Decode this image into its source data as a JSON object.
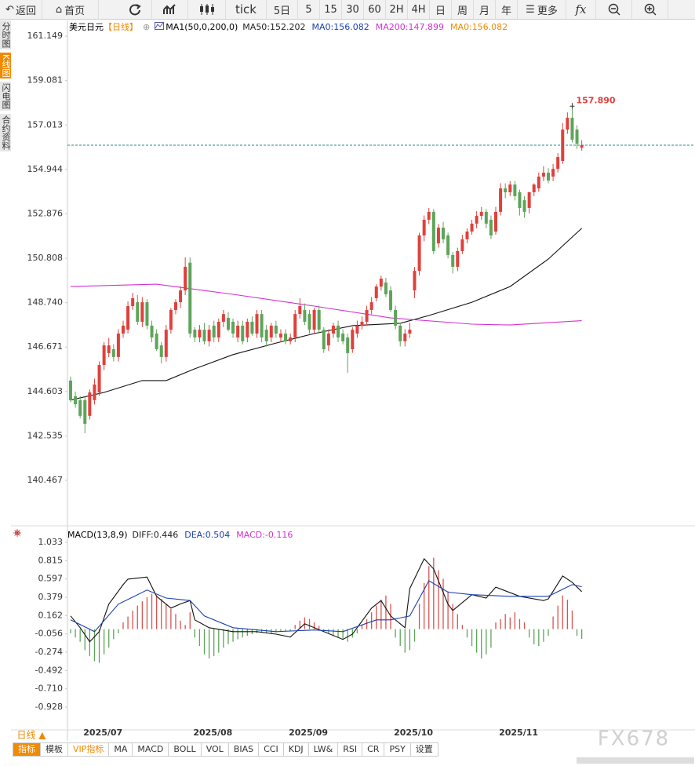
{
  "toolbar": [
    "返回",
    "首页",
    "tick",
    "5日",
    "5",
    "15",
    "30",
    "60",
    "2H",
    "4H",
    "日",
    "周",
    "月",
    "年",
    "更多",
    "fx"
  ],
  "sidebar": [
    "分时图",
    "K线图",
    "闪电图",
    "合约资料"
  ],
  "period_button": "日线 ▲",
  "tabs": [
    "指标",
    "模板",
    "VIP指标",
    "MA",
    "MACD",
    "BOLL",
    "VOL",
    "BIAS",
    "CCI",
    "KDJ",
    "LW&",
    "RSI",
    "CR",
    "PSY",
    "设置"
  ],
  "watermark": "FX678",
  "chart_data": [
    {
      "type": "candlestick",
      "title": "美元日元",
      "subtitle": "【日线】",
      "indicator": "MA1(50,0,200,0)",
      "legend": [
        {
          "name": "MA50:152.202",
          "color": "#222222"
        },
        {
          "name": "MA0:156.082",
          "color": "#1a3fb0"
        },
        {
          "name": "MA200:147.899",
          "color": "#d42fd4"
        },
        {
          "name": "MA0:156.082",
          "color": "#f08a00"
        }
      ],
      "annotation": "157.890",
      "up_color": "#e0403c",
      "down_color": "#5ea45a",
      "last_line_color": "#2a8a8a",
      "ylim": [
        138.42,
        161.81
      ],
      "yticks": [
        161.149,
        159.081,
        157.013,
        154.944,
        152.876,
        150.808,
        {
          "value": 148.74,
          "label": "148.740"
        },
        146.671,
        144.603,
        142.535,
        140.467
      ],
      "categories": [
        null,
        null,
        null,
        "2025/07",
        null,
        null,
        null,
        null,
        null,
        null,
        null,
        null,
        null,
        null,
        null,
        null,
        null,
        null,
        null,
        null,
        null,
        null,
        null,
        null,
        null,
        null,
        "2025/08",
        null,
        null,
        null,
        null,
        null,
        null,
        null,
        null,
        null,
        null,
        null,
        null,
        null,
        null,
        null,
        null,
        null,
        null,
        null,
        "2025/09",
        null,
        null,
        null,
        null,
        null,
        null,
        null,
        null,
        null,
        null,
        null,
        null,
        null,
        null,
        null,
        null,
        null,
        null,
        null,
        null,
        null,
        "2025/10",
        null,
        null,
        null,
        null,
        null,
        null,
        null,
        null,
        null,
        null,
        null,
        null,
        null,
        null,
        null,
        null,
        null,
        null,
        null,
        null,
        null,
        "2025/11",
        null,
        null,
        null,
        null,
        null,
        null,
        null,
        null,
        null,
        null,
        null,
        null,
        null,
        null,
        null,
        null,
        null
      ],
      "ohlc": [
        [
          145.11,
          145.3,
          144.1,
          144.2
        ],
        [
          144.38,
          144.6,
          143.85,
          144.01
        ],
        [
          144.2,
          144.4,
          143.35,
          143.47
        ],
        [
          144.2,
          144.35,
          142.66,
          143.1
        ],
        [
          143.47,
          144.7,
          143.3,
          144.56
        ],
        [
          144.2,
          145.2,
          144.0,
          144.93
        ],
        [
          144.56,
          146.0,
          144.4,
          145.84
        ],
        [
          145.84,
          146.9,
          145.6,
          146.75
        ],
        [
          146.39,
          147.1,
          146.2,
          146.75
        ],
        [
          146.57,
          146.8,
          146.0,
          146.21
        ],
        [
          146.21,
          147.5,
          146.0,
          147.3
        ],
        [
          147.3,
          147.9,
          147.1,
          147.67
        ],
        [
          147.48,
          148.8,
          147.3,
          148.58
        ],
        [
          148.58,
          149.2,
          148.4,
          148.95
        ],
        [
          148.76,
          149.1,
          147.7,
          147.85
        ],
        [
          147.85,
          149.0,
          147.6,
          148.76
        ],
        [
          148.76,
          148.9,
          147.5,
          147.67
        ],
        [
          147.67,
          147.9,
          146.9,
          147.12
        ],
        [
          147.3,
          147.5,
          146.5,
          146.57
        ],
        [
          146.75,
          146.9,
          145.91,
          146.21
        ],
        [
          146.21,
          147.7,
          146.0,
          147.48
        ],
        [
          147.48,
          148.5,
          147.3,
          148.4
        ],
        [
          148.4,
          148.9,
          148.2,
          148.76
        ],
        [
          148.76,
          149.5,
          148.5,
          149.31
        ],
        [
          149.31,
          150.85,
          149.1,
          150.41
        ],
        [
          150.6,
          150.85,
          147.1,
          147.3
        ],
        [
          147.48,
          147.6,
          146.9,
          147.12
        ],
        [
          147.12,
          147.7,
          146.9,
          147.48
        ],
        [
          147.48,
          147.8,
          146.8,
          146.94
        ],
        [
          146.94,
          147.7,
          146.7,
          147.48
        ],
        [
          147.67,
          147.9,
          146.9,
          147.12
        ],
        [
          147.12,
          148.0,
          146.9,
          147.85
        ],
        [
          147.85,
          148.4,
          147.6,
          148.21
        ],
        [
          148.03,
          148.3,
          147.4,
          147.48
        ],
        [
          147.85,
          148.0,
          147.1,
          147.3
        ],
        [
          147.12,
          147.9,
          146.9,
          147.67
        ],
        [
          147.67,
          147.9,
          146.8,
          146.94
        ],
        [
          147.12,
          148.0,
          146.9,
          147.85
        ],
        [
          147.85,
          148.1,
          147.2,
          147.3
        ],
        [
          147.3,
          148.4,
          147.1,
          148.21
        ],
        [
          148.21,
          148.4,
          146.9,
          147.12
        ],
        [
          147.48,
          147.7,
          146.7,
          146.94
        ],
        [
          147.12,
          147.8,
          146.9,
          147.67
        ],
        [
          147.67,
          147.9,
          147.1,
          147.3
        ],
        [
          147.12,
          147.5,
          146.9,
          147.3
        ],
        [
          147.3,
          147.5,
          146.8,
          146.94
        ],
        [
          146.94,
          147.3,
          146.8,
          147.12
        ],
        [
          147.12,
          148.4,
          146.9,
          148.21
        ],
        [
          148.21,
          148.95,
          148.0,
          148.58
        ],
        [
          148.4,
          148.7,
          147.7,
          147.85
        ],
        [
          148.21,
          148.4,
          147.3,
          147.48
        ],
        [
          147.48,
          148.5,
          147.3,
          148.4
        ],
        [
          148.4,
          148.6,
          147.3,
          147.48
        ],
        [
          147.48,
          147.6,
          146.4,
          146.57
        ],
        [
          146.75,
          147.5,
          146.5,
          147.3
        ],
        [
          147.3,
          147.8,
          147.1,
          147.67
        ],
        [
          147.67,
          147.9,
          146.9,
          147.12
        ],
        [
          147.3,
          147.5,
          146.8,
          146.94
        ],
        [
          147.12,
          147.3,
          145.48,
          146.39
        ],
        [
          146.57,
          147.6,
          146.4,
          147.48
        ],
        [
          147.3,
          147.9,
          147.1,
          147.67
        ],
        [
          147.67,
          148.1,
          147.5,
          147.85
        ],
        [
          147.85,
          148.6,
          147.7,
          148.4
        ],
        [
          148.4,
          149.0,
          148.2,
          148.76
        ],
        [
          148.95,
          149.6,
          148.8,
          149.49
        ],
        [
          149.49,
          150.0,
          149.3,
          149.86
        ],
        [
          149.68,
          149.9,
          149.0,
          149.13
        ],
        [
          149.31,
          149.5,
          148.3,
          148.4
        ],
        [
          148.4,
          148.6,
          147.5,
          147.67
        ],
        [
          147.67,
          147.8,
          146.7,
          146.94
        ],
        [
          146.94,
          147.5,
          146.7,
          147.3
        ],
        [
          147.3,
          147.8,
          147.1,
          147.48
        ],
        [
          149.31,
          150.4,
          148.95,
          150.22
        ],
        [
          150.22,
          152.0,
          150.0,
          151.87
        ],
        [
          151.87,
          152.8,
          151.6,
          152.6
        ],
        [
          152.6,
          153.15,
          152.4,
          152.97
        ],
        [
          152.97,
          153.1,
          151.0,
          151.14
        ],
        [
          151.5,
          152.4,
          151.3,
          152.23
        ],
        [
          152.23,
          152.5,
          151.5,
          151.69
        ],
        [
          151.87,
          152.0,
          150.8,
          150.96
        ],
        [
          150.96,
          151.1,
          150.1,
          150.41
        ],
        [
          150.41,
          151.3,
          150.2,
          151.14
        ],
        [
          151.14,
          151.9,
          151.0,
          151.69
        ],
        [
          151.69,
          152.2,
          151.5,
          152.05
        ],
        [
          152.05,
          152.6,
          151.9,
          152.42
        ],
        [
          152.42,
          153.0,
          152.2,
          152.78
        ],
        [
          152.78,
          153.2,
          152.6,
          152.97
        ],
        [
          152.97,
          153.1,
          152.2,
          152.42
        ],
        [
          152.6,
          152.8,
          151.7,
          151.87
        ],
        [
          152.05,
          153.2,
          151.9,
          152.97
        ],
        [
          152.97,
          154.3,
          152.8,
          154.06
        ],
        [
          154.06,
          154.3,
          153.6,
          153.88
        ],
        [
          153.88,
          154.4,
          153.7,
          154.24
        ],
        [
          154.24,
          154.4,
          153.5,
          153.7
        ],
        [
          153.88,
          154.0,
          152.8,
          153.15
        ],
        [
          153.51,
          153.7,
          152.7,
          152.97
        ],
        [
          153.15,
          153.9,
          152.9,
          153.88
        ],
        [
          153.88,
          154.3,
          153.7,
          154.24
        ],
        [
          154.06,
          154.8,
          153.9,
          154.61
        ],
        [
          154.61,
          155.1,
          154.4,
          154.79
        ],
        [
          154.79,
          155.0,
          154.3,
          154.43
        ],
        [
          154.61,
          155.2,
          154.4,
          154.97
        ],
        [
          154.97,
          155.7,
          154.8,
          155.52
        ],
        [
          155.34,
          157.1,
          155.2,
          156.8
        ],
        [
          156.8,
          157.6,
          156.6,
          157.35
        ],
        [
          157.35,
          157.89,
          156.2,
          156.33
        ],
        [
          156.8,
          157.0,
          155.9,
          156.14
        ],
        [
          155.95,
          156.3,
          155.82,
          156.07
        ]
      ],
      "lines": [
        {
          "color": "#111111",
          "x": [
            0,
            7,
            15,
            20,
            26,
            34,
            43,
            51,
            59,
            69,
            75,
            84,
            92,
            100,
            107
          ],
          "values": [
            144.2,
            144.56,
            145.11,
            145.11,
            145.66,
            146.32,
            146.86,
            147.3,
            147.67,
            147.78,
            148.14,
            148.76,
            149.49,
            150.77,
            152.202
          ]
        },
        {
          "color": "#d42fd4",
          "x": [
            0,
            18,
            34,
            51,
            67,
            84,
            92,
            107
          ],
          "values": [
            149.49,
            149.6,
            149.13,
            148.58,
            148.03,
            147.74,
            147.7,
            147.899
          ]
        }
      ]
    },
    {
      "type": "macd",
      "title": "MACD(13,8,9)",
      "legend": [
        {
          "name": "DIFF:0.446",
          "color": "#222222"
        },
        {
          "name": "DEA:0.504",
          "color": "#1a3fb0"
        },
        {
          "name": "MACD:-0.116",
          "color": "#d42fd4"
        }
      ],
      "up_color": "#d9534f",
      "down_color": "#5ea45a",
      "ylim": [
        -1.199,
        1.229
      ],
      "yticks": [
        1.033,
        0.815,
        0.597,
        0.379,
        0.162,
        -0.056,
        -0.274,
        -0.492,
        {
          "value": -0.71,
          "label": "-0.710"
        },
        -0.928
      ],
      "histogram": [
        -0.05,
        -0.1,
        -0.15,
        -0.25,
        -0.32,
        -0.38,
        -0.4,
        -0.3,
        -0.22,
        -0.12,
        -0.05,
        0.08,
        0.15,
        0.22,
        0.28,
        0.33,
        0.38,
        0.42,
        0.4,
        0.36,
        0.3,
        0.24,
        0.18,
        0.1,
        0.05,
        0.2,
        -0.1,
        -0.2,
        -0.3,
        -0.35,
        -0.32,
        -0.28,
        -0.22,
        -0.18,
        -0.15,
        -0.12,
        -0.1,
        -0.08,
        -0.06,
        -0.05,
        -0.04,
        -0.05,
        -0.06,
        -0.04,
        -0.03,
        -0.02,
        -0.02,
        0.05,
        0.1,
        0.14,
        0.12,
        0.08,
        0.04,
        -0.02,
        -0.05,
        -0.08,
        -0.1,
        -0.12,
        -0.15,
        -0.1,
        -0.05,
        0.05,
        0.12,
        0.2,
        0.28,
        0.35,
        0.4,
        0.3,
        -0.1,
        -0.2,
        -0.28,
        -0.25,
        -0.15,
        0.3,
        0.55,
        0.75,
        0.85,
        0.7,
        0.6,
        0.45,
        0.3,
        0.18,
        0.05,
        -0.1,
        -0.2,
        -0.28,
        -0.35,
        -0.3,
        -0.22,
        0.08,
        0.12,
        0.18,
        0.14,
        0.2,
        0.12,
        0.08,
        -0.1,
        -0.18,
        -0.2,
        -0.15,
        -0.08,
        0.15,
        0.28,
        0.4,
        0.35,
        0.22,
        -0.08,
        -0.116
      ],
      "lines": [
        {
          "color": "#111111",
          "x": [
            0,
            2,
            4,
            6,
            8,
            11,
            12,
            16,
            18,
            21,
            23,
            25,
            26,
            29,
            34,
            39,
            43,
            46,
            49,
            53,
            57,
            59,
            63,
            65,
            67,
            70,
            71,
            74,
            76,
            79,
            80,
            84,
            87,
            89,
            94,
            99,
            100,
            103,
            105,
            107
          ],
          "values": [
            0.157,
            0.017,
            -0.15,
            -0.03,
            0.297,
            0.53,
            0.595,
            0.62,
            0.39,
            0.25,
            0.3,
            0.34,
            0.11,
            0.017,
            -0.03,
            -0.03,
            -0.06,
            -0.094,
            0.064,
            -0.03,
            -0.122,
            -0.06,
            0.25,
            0.34,
            0.157,
            0.017,
            0.483,
            0.837,
            0.716,
            0.297,
            0.222,
            0.41,
            0.37,
            0.5,
            0.39,
            0.34,
            0.36,
            0.632,
            0.558,
            0.446
          ]
        },
        {
          "color": "#1a3fb0",
          "x": [
            0,
            5,
            10,
            16,
            20,
            25,
            28,
            34,
            43,
            51,
            57,
            64,
            67,
            71,
            75,
            79,
            84,
            92,
            100,
            105,
            107
          ],
          "values": [
            0.11,
            -0.03,
            0.297,
            0.465,
            0.37,
            0.34,
            0.157,
            0.017,
            -0.03,
            -0.01,
            -0.03,
            0.11,
            0.11,
            0.157,
            0.576,
            0.44,
            0.41,
            0.39,
            0.39,
            0.53,
            0.504
          ]
        }
      ]
    }
  ]
}
